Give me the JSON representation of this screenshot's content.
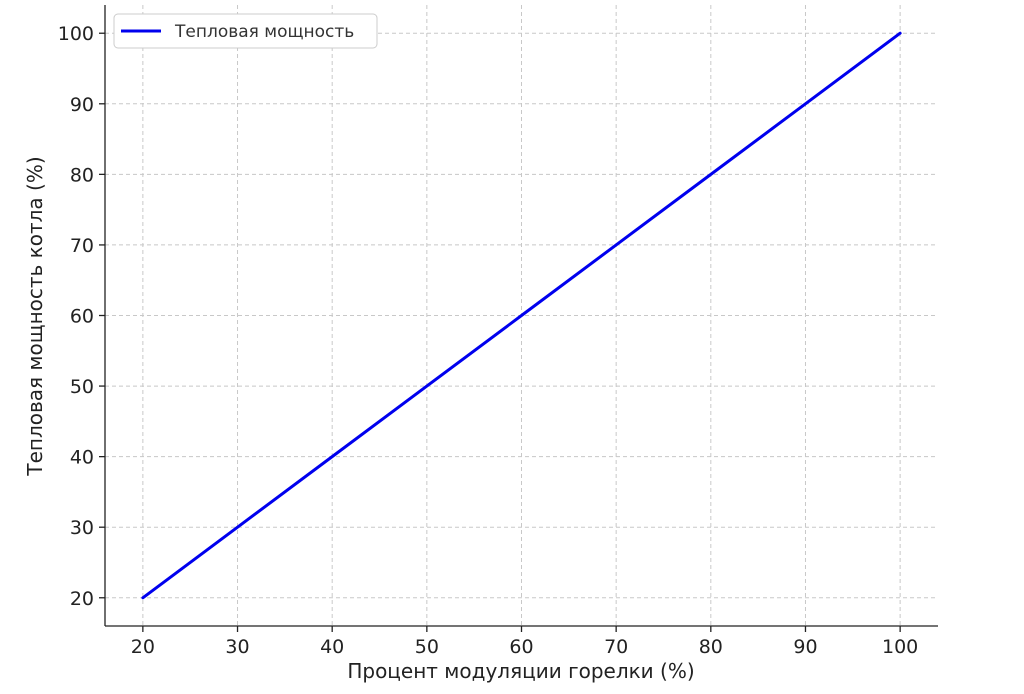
{
  "chart_data": {
    "type": "line",
    "title": "",
    "xlabel": "Процент модуляции горелки (%)",
    "ylabel": "Тепловая мощность котла (%)",
    "xlim": [
      16,
      104
    ],
    "ylim": [
      16,
      104
    ],
    "xticks": [
      20,
      30,
      40,
      50,
      60,
      70,
      80,
      90,
      100
    ],
    "yticks": [
      20,
      30,
      40,
      50,
      60,
      70,
      80,
      90,
      100
    ],
    "grid": true,
    "legend_position": "top-left",
    "series": [
      {
        "name": "Тепловая мощность",
        "color": "#0000ee",
        "x": [
          20,
          30,
          40,
          50,
          60,
          70,
          80,
          90,
          100
        ],
        "y": [
          20,
          30,
          40,
          50,
          60,
          70,
          80,
          90,
          100
        ]
      }
    ]
  }
}
